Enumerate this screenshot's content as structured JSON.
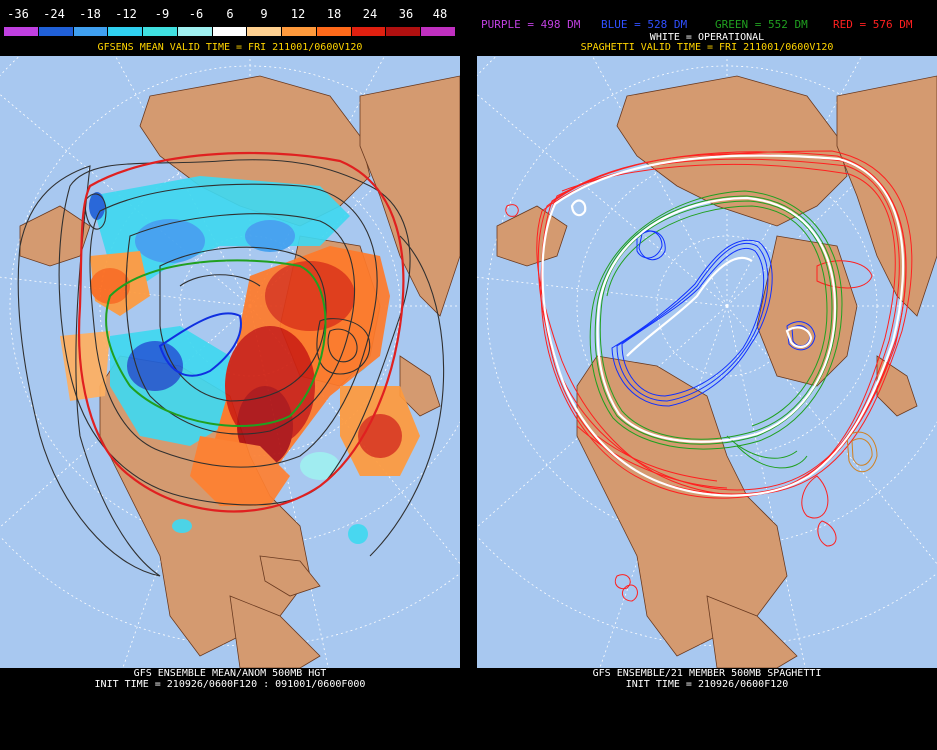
{
  "colorbar": {
    "labels": [
      "-36",
      "-24",
      "-18",
      "-12",
      "-9",
      "-6",
      "6",
      "9",
      "12",
      "18",
      "24",
      "36",
      "48"
    ],
    "colors": [
      "#c040e0",
      "#2060d8",
      "#40a0f0",
      "#30d0f0",
      "#40e0e0",
      "#a0f0f0",
      "#ffffff",
      "#ffd090",
      "#ff9a3c",
      "#ff6a1a",
      "#e02010",
      "#b01010",
      "#c030c0"
    ]
  },
  "left": {
    "title": "GFSENS MEAN VALID TIME = FRI 211001/0600V120",
    "caption_line1": "GFS ENSEMBLE MEAN/ANOM 500MB HGT",
    "caption_line2": "INIT TIME = 210926/0600F120 : 091001/0600F000"
  },
  "right": {
    "legend": [
      {
        "text": "PURPLE = 498 DM",
        "color": "#c040e0"
      },
      {
        "text": "BLUE = 528 DM",
        "color": "#3050ff"
      },
      {
        "text": "GREEN = 552 DM",
        "color": "#20a020"
      },
      {
        "text": "RED = 576 DM",
        "color": "#ff2020"
      }
    ],
    "operational": "WHITE = OPERATIONAL",
    "title": "SPAGHETTI VALID TIME = FRI 211001/0600V120",
    "caption_line1": "GFS ENSEMBLE/21 MEMBER 500MB SPAGHETTI",
    "caption_line2": "INIT TIME = 210926/0600F120"
  },
  "colors": {
    "ocean": "#a8c8f0",
    "land": "#d49a70",
    "grid": "#ffffff",
    "border": "#6a3a20"
  }
}
